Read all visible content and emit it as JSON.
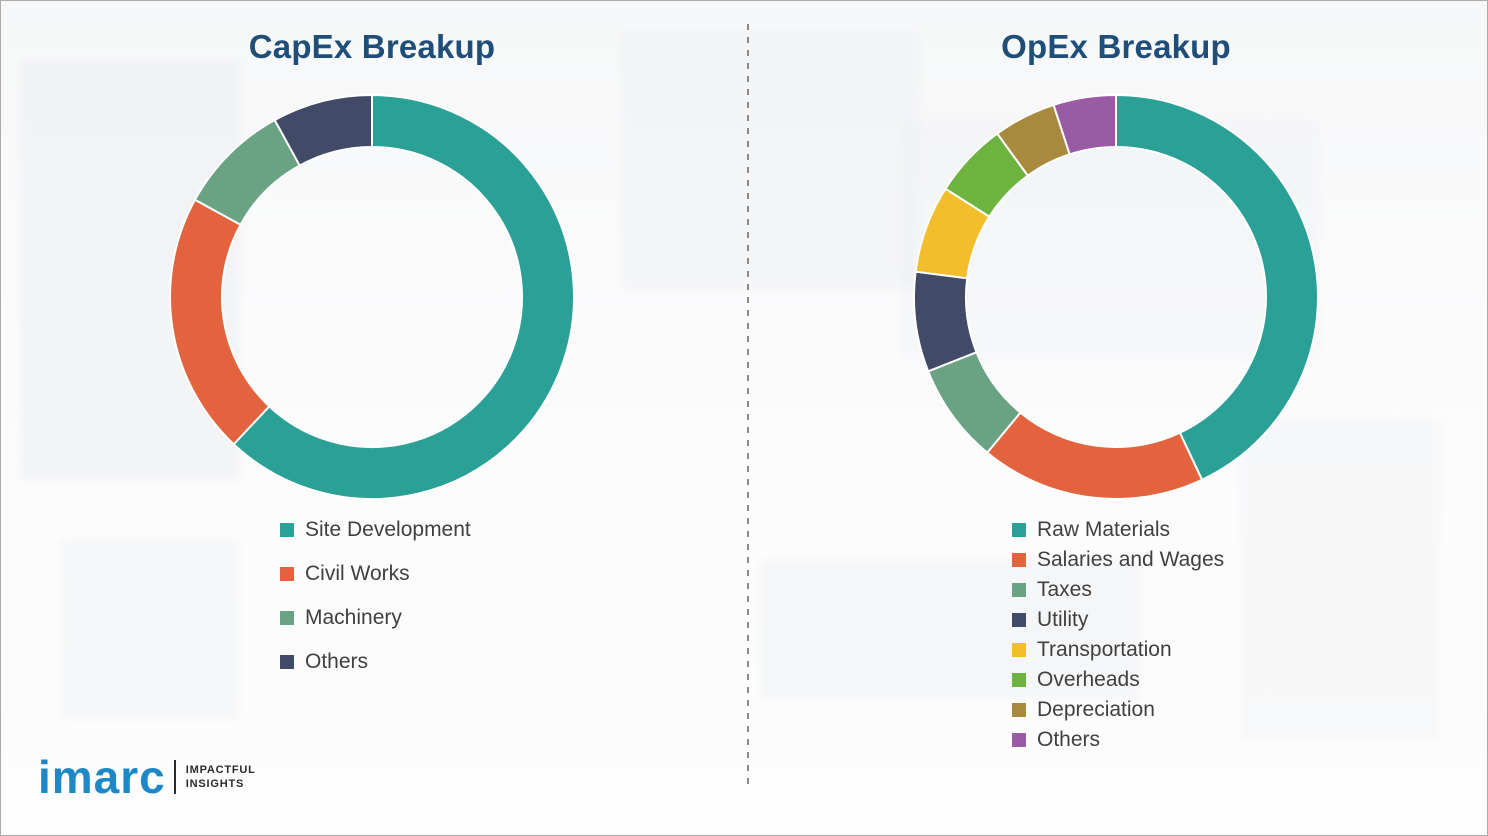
{
  "chart_data": [
    {
      "type": "donut",
      "title": "CapEx Breakup",
      "labels": [
        "Site Development",
        "Civil Works",
        "Machinery",
        "Others"
      ],
      "values": [
        62,
        21,
        9,
        8
      ],
      "colors": [
        "#2AA096",
        "#E2633D",
        "#69A383",
        "#414A66"
      ],
      "legend_position": "below-left",
      "start_angle_deg": 0,
      "direction": "clockwise"
    },
    {
      "type": "donut",
      "title": "OpEx Breakup",
      "labels": [
        "Raw Materials",
        "Salaries and Wages",
        "Taxes",
        "Utility",
        "Transportation",
        "Overheads",
        "Depreciation",
        "Others"
      ],
      "values": [
        43,
        18,
        8,
        8,
        7,
        6,
        5,
        5
      ],
      "colors": [
        "#2AA096",
        "#E2633D",
        "#69A383",
        "#414A66",
        "#F2BE2B",
        "#6DB33F",
        "#A78A3D",
        "#995BA4"
      ],
      "legend_position": "below-left",
      "start_angle_deg": 0,
      "direction": "clockwise"
    }
  ],
  "logo": {
    "wordmark": "imarc",
    "tagline": [
      "IMPACTFUL",
      "INSIGHTS"
    ],
    "wordmark_color": "#1E88C7"
  }
}
